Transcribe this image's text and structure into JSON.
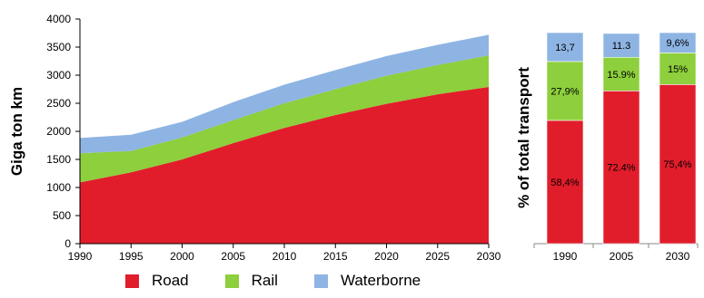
{
  "chart_data": [
    {
      "type": "area",
      "stacked": true,
      "ylabel": "Giga ton km",
      "x": [
        1990,
        1995,
        2000,
        2005,
        2010,
        2015,
        2020,
        2025,
        2030
      ],
      "xticks": [
        "1990",
        "1995",
        "2000",
        "2005",
        "2010",
        "2015",
        "2020",
        "2025",
        "2030"
      ],
      "ylim": [
        0,
        4000
      ],
      "yticks": [
        "0",
        "500",
        "1000",
        "1500",
        "2000",
        "2500",
        "3000",
        "3500",
        "4000"
      ],
      "series": [
        {
          "name": "Road",
          "color": "#e11d2b",
          "values": [
            1090,
            1270,
            1500,
            1790,
            2060,
            2290,
            2490,
            2660,
            2790
          ]
        },
        {
          "name": "Rail",
          "color": "#8dcf3c",
          "values": [
            520,
            380,
            390,
            410,
            440,
            460,
            500,
            520,
            560
          ]
        },
        {
          "name": "Waterborne",
          "color": "#8eb4e3",
          "values": [
            270,
            290,
            280,
            320,
            330,
            340,
            350,
            360,
            370
          ]
        }
      ]
    },
    {
      "type": "bar",
      "stacked": true,
      "ylabel": "% of total transport",
      "categories": [
        "1990",
        "2005",
        "2030"
      ],
      "series": [
        {
          "name": "Road",
          "color": "#e11d2b",
          "values": [
            58.4,
            72.4,
            75.4
          ],
          "labels": [
            "58,4%",
            "72.4%",
            "75,4%"
          ]
        },
        {
          "name": "Rail",
          "color": "#8dcf3c",
          "values": [
            27.9,
            15.9,
            15
          ],
          "labels": [
            "27,9%",
            "15.9%",
            "15%"
          ]
        },
        {
          "name": "Waterborne",
          "color": "#8eb4e3",
          "values": [
            13.7,
            11.3,
            9.6
          ],
          "labels": [
            "13,7",
            "11.3",
            "9,6%"
          ]
        }
      ]
    }
  ],
  "legend": [
    {
      "label": "Road",
      "color": "#e11d2b"
    },
    {
      "label": "Rail",
      "color": "#8dcf3c"
    },
    {
      "label": "Waterborne",
      "color": "#8eb4e3"
    }
  ]
}
